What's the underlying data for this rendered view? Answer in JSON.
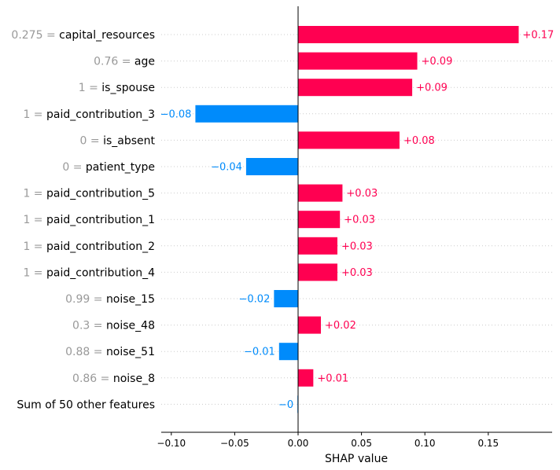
{
  "chart_data": {
    "type": "bar",
    "orientation": "horizontal",
    "xlabel": "SHAP value",
    "xlim": [
      -0.108,
      0.2
    ],
    "xticks": [
      -0.1,
      -0.05,
      0.0,
      0.05,
      0.1,
      0.15
    ],
    "xtick_labels": [
      "−0.10",
      "−0.05",
      "0.00",
      "0.05",
      "0.10",
      "0.15"
    ],
    "zero_line": true,
    "gridlines": "dotted-horizontal",
    "colors": {
      "positive": "#ff0051",
      "negative": "#008bfb"
    },
    "features": [
      {
        "value": "0.275",
        "name": "capital_resources",
        "shap": 0.174,
        "label": "+0.17"
      },
      {
        "value": "0.76",
        "name": "age",
        "shap": 0.094,
        "label": "+0.09"
      },
      {
        "value": "1",
        "name": "is_spouse",
        "shap": 0.09,
        "label": "+0.09"
      },
      {
        "value": "1",
        "name": "paid_contribution_3",
        "shap": -0.081,
        "label": "−0.08"
      },
      {
        "value": "0",
        "name": "is_absent",
        "shap": 0.08,
        "label": "+0.08"
      },
      {
        "value": "0",
        "name": "patient_type",
        "shap": -0.041,
        "label": "−0.04"
      },
      {
        "value": "1",
        "name": "paid_contribution_5",
        "shap": 0.035,
        "label": "+0.03"
      },
      {
        "value": "1",
        "name": "paid_contribution_1",
        "shap": 0.033,
        "label": "+0.03"
      },
      {
        "value": "1",
        "name": "paid_contribution_2",
        "shap": 0.031,
        "label": "+0.03"
      },
      {
        "value": "1",
        "name": "paid_contribution_4",
        "shap": 0.031,
        "label": "+0.03"
      },
      {
        "value": "0.99",
        "name": "noise_15",
        "shap": -0.019,
        "label": "−0.02"
      },
      {
        "value": "0.3",
        "name": "noise_48",
        "shap": 0.018,
        "label": "+0.02"
      },
      {
        "value": "0.88",
        "name": "noise_51",
        "shap": -0.015,
        "label": "−0.01"
      },
      {
        "value": "0.86",
        "name": "noise_8",
        "shap": 0.012,
        "label": "+0.01"
      },
      {
        "value": "",
        "name": "Sum of 50 other features",
        "shap": -0.0005,
        "label": "−0"
      }
    ]
  }
}
